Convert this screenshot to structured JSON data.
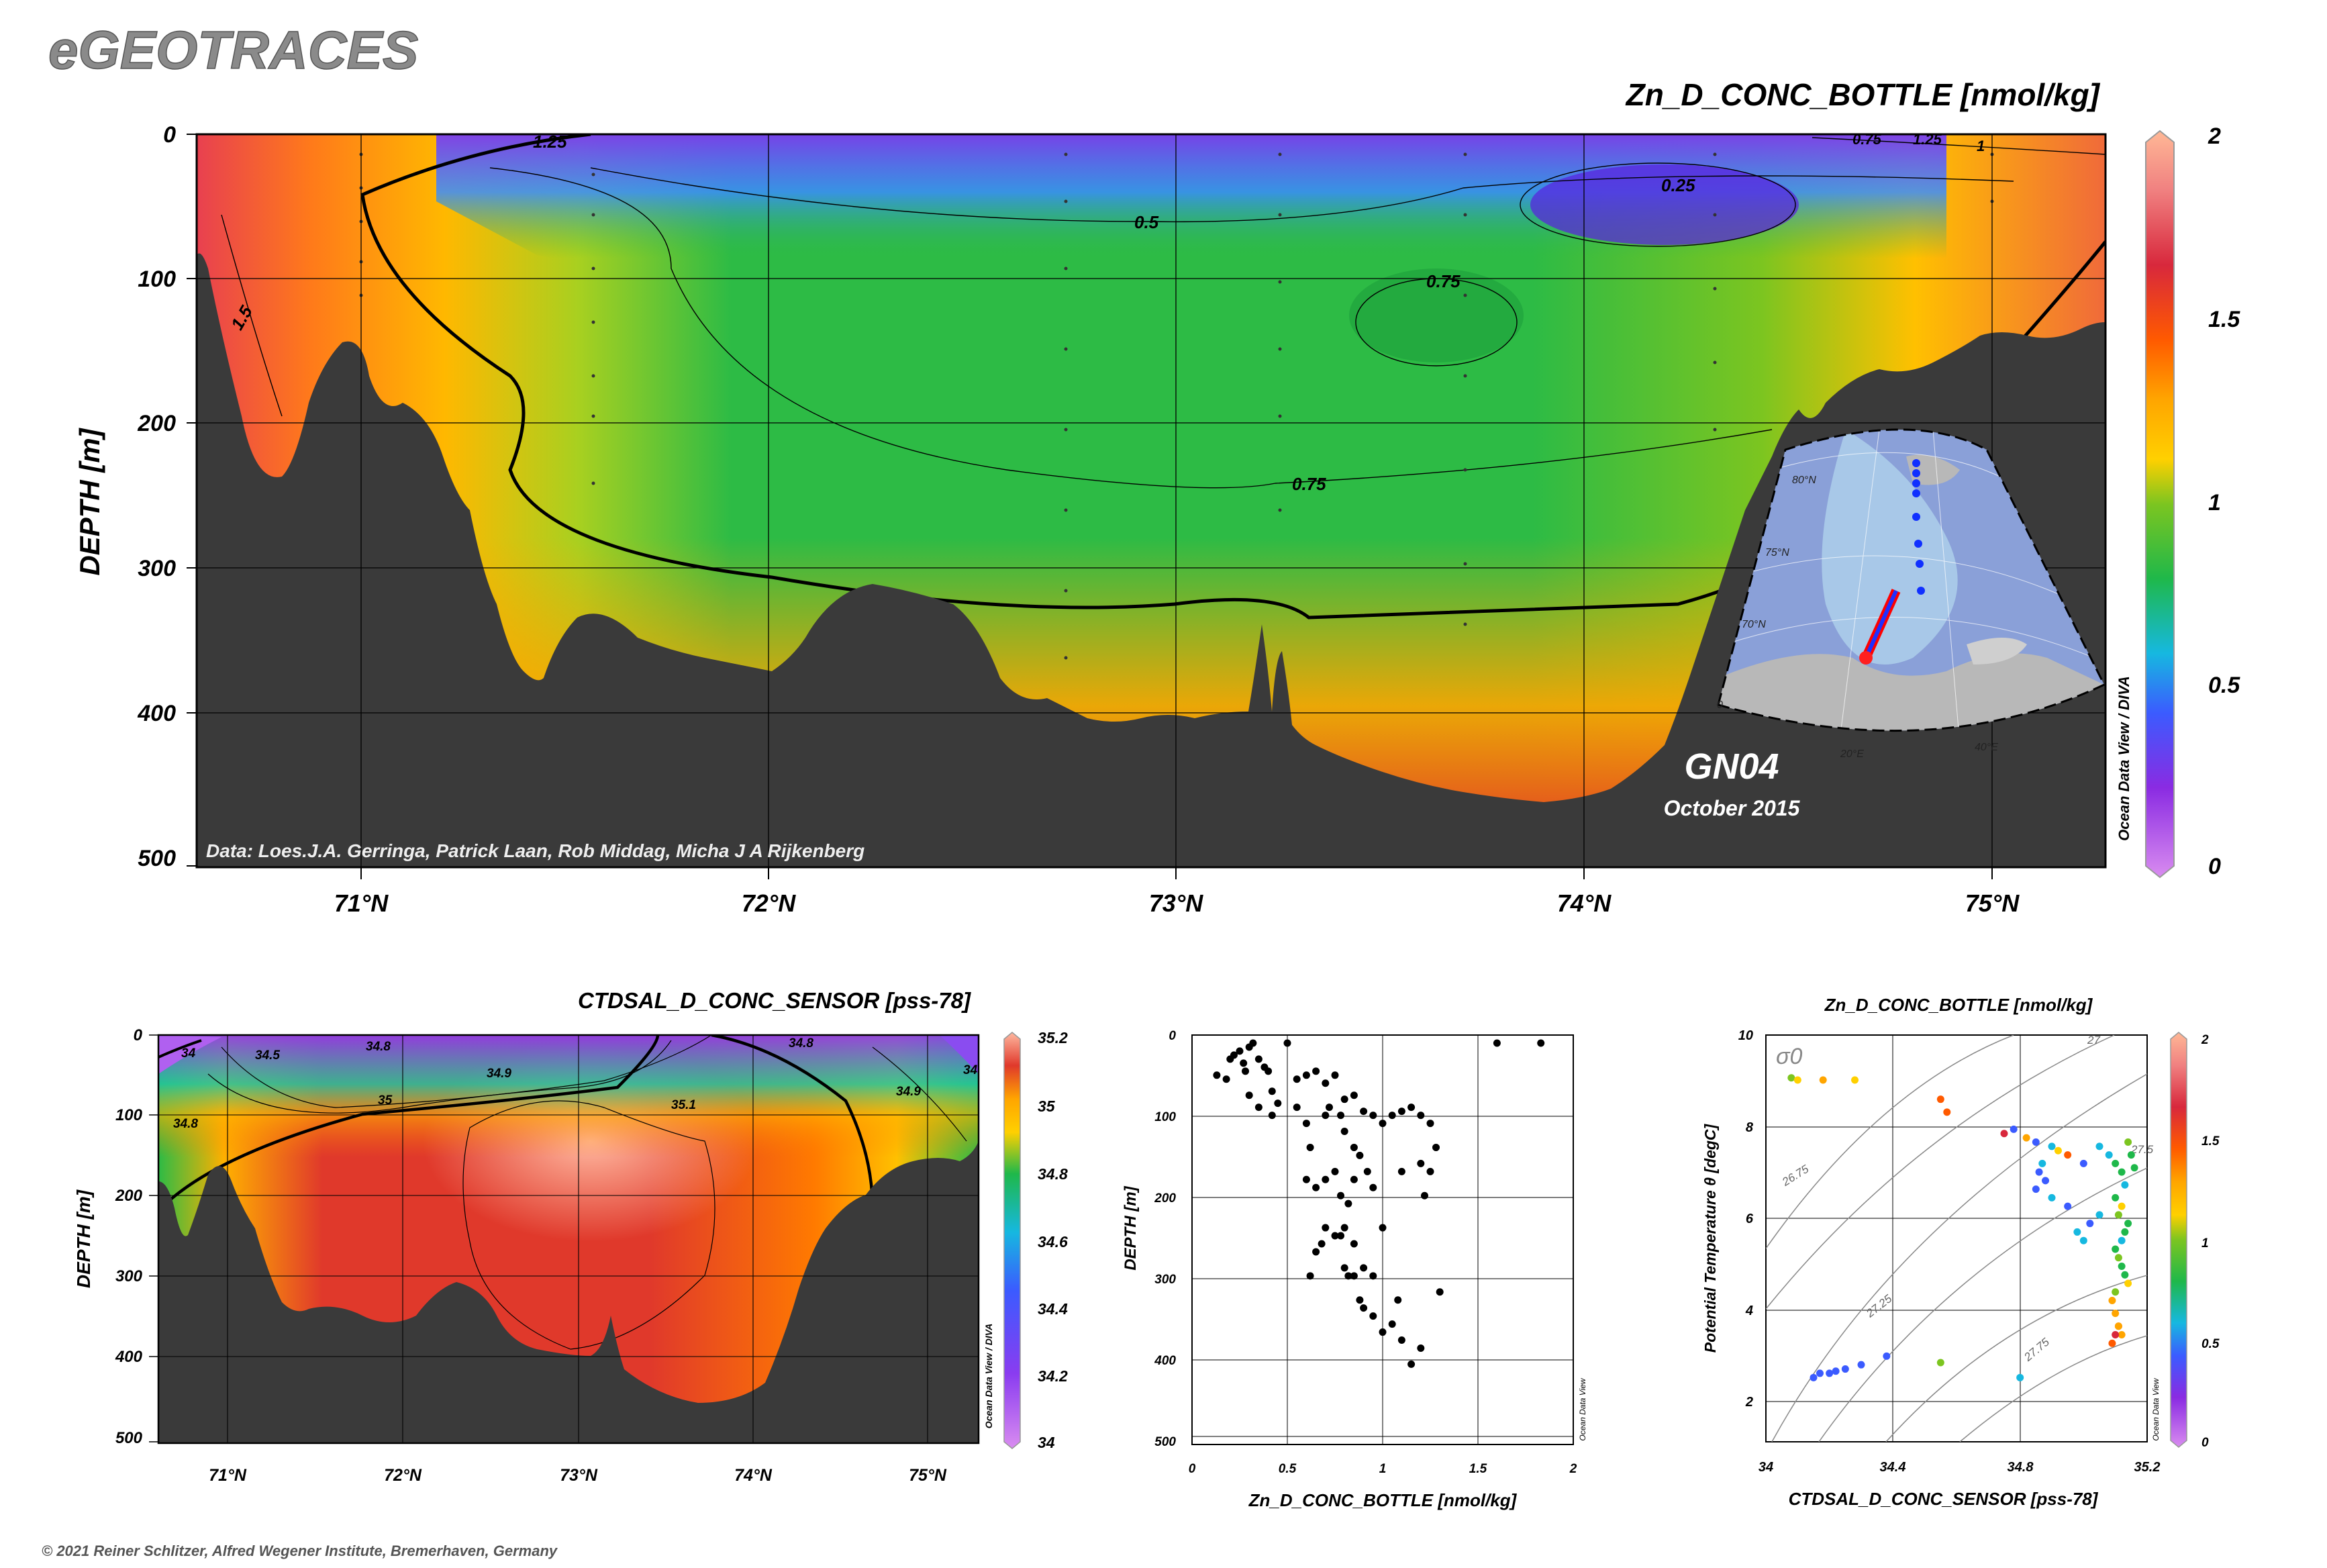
{
  "brand": "eGEOTRACES",
  "copyright": "© 2021 Reiner Schlitzer, Alfred Wegener Institute, Bremerhaven, Germany",
  "colors": {
    "seafloor": "#3a3a3a",
    "frame": "#000000",
    "brand_gray": "#8a8a8a",
    "colormap": [
      "#d98cf0",
      "#8a2be2",
      "#3b5bff",
      "#16b8e0",
      "#1fb84a",
      "#7cc520",
      "#ffd000",
      "#ffa500",
      "#ff5a00",
      "#d8283c",
      "#f08080",
      "#ffb896"
    ]
  },
  "main_section": {
    "title": "Zn_D_CONC_BOTTLE [nmol/kg]",
    "ylabel": "DEPTH [m]",
    "credit": "Data: Loes.J.A. Gerringa, Patrick Laan, Rob Middag, Micha J A Rijkenberg",
    "cruise": "GN04",
    "date": "October 2015",
    "vertical_credit": "Ocean Data View / DIVA",
    "y_ticks": [
      "0",
      "100",
      "200",
      "300",
      "400",
      "500"
    ],
    "x_ticks": [
      "71°N",
      "72°N",
      "73°N",
      "74°N",
      "75°N"
    ],
    "colorbar_ticks": [
      "0",
      "0.5",
      "1",
      "1.5",
      "2"
    ],
    "contour_labels": [
      "1.25",
      "0.5",
      "0.25",
      "0.75",
      "0.75",
      "1.5",
      "0.75",
      "1.25",
      "1"
    ],
    "inset_map": {
      "lat_labels": [
        "80°N",
        "75°N",
        "70°N"
      ],
      "lon_labels": [
        "0",
        "20°E",
        "40°E"
      ]
    }
  },
  "salinity_section": {
    "title": "CTDSAL_D_CONC_SENSOR [pss-78]",
    "ylabel": "DEPTH [m]",
    "vertical_credit": "Ocean Data View / DIVA",
    "y_ticks": [
      "0",
      "100",
      "200",
      "300",
      "400",
      "500"
    ],
    "x_ticks": [
      "71°N",
      "72°N",
      "73°N",
      "74°N",
      "75°N"
    ],
    "colorbar_ticks": [
      "34",
      "34.2",
      "34.4",
      "34.6",
      "34.8",
      "35",
      "35.2"
    ],
    "contour_labels": [
      "34",
      "34.5",
      "34.8",
      "34.9",
      "35",
      "35.1",
      "34.8",
      "34.9",
      "34.8",
      "34"
    ]
  },
  "profile_plot": {
    "xlabel": "Zn_D_CONC_BOTTLE [nmol/kg]",
    "ylabel": "DEPTH [m]",
    "vertical_credit": "Ocean Data View",
    "x_ticks": [
      "0",
      "0.5",
      "1",
      "1.5",
      "2"
    ],
    "y_ticks": [
      "0",
      "100",
      "200",
      "300",
      "400",
      "500"
    ]
  },
  "ts_plot": {
    "title": "Zn_D_CONC_BOTTLE [nmol/kg]",
    "xlabel": "CTDSAL_D_CONC_SENSOR [pss-78]",
    "ylabel": "Potential Temperature θ [degC]",
    "sigma_label": "σ0",
    "vertical_credit": "Ocean Data View",
    "x_ticks": [
      "34",
      "34.4",
      "34.8",
      "35.2"
    ],
    "y_ticks": [
      "2",
      "4",
      "6",
      "8",
      "10"
    ],
    "colorbar_ticks": [
      "0",
      "0.5",
      "1",
      "1.5",
      "2"
    ],
    "isopycnal_labels": [
      "26.75",
      "27.25",
      "27.75",
      "27",
      "27.5"
    ]
  },
  "chart_data": [
    {
      "type": "heatmap",
      "title": "Zn_D_CONC_BOTTLE [nmol/kg]",
      "ylabel": "DEPTH [m]",
      "xlim": [
        70.6,
        75.3
      ],
      "ylim": [
        500,
        0
      ],
      "color_range": [
        0,
        2
      ],
      "bottom_depth_profile": {
        "lat": [
          70.6,
          70.75,
          70.95,
          71.05,
          71.15,
          71.3,
          71.5,
          71.75,
          71.9,
          72.05,
          72.2,
          72.35,
          72.5,
          72.7,
          72.9,
          73.1,
          73.2,
          73.25,
          73.35,
          73.55,
          73.8,
          73.9,
          74.05,
          74.15,
          74.25,
          74.4,
          74.6,
          74.8,
          75.0,
          75.3
        ],
        "depth": [
          90,
          240,
          150,
          180,
          200,
          300,
          380,
          360,
          400,
          380,
          320,
          330,
          390,
          410,
          400,
          385,
          340,
          360,
          430,
          450,
          460,
          462,
          440,
          400,
          350,
          250,
          200,
          180,
          150,
          130
        ]
      },
      "station_lats": [
        71.0,
        71.57,
        72.73,
        73.25,
        73.7,
        74.32,
        75.0
      ]
    },
    {
      "type": "heatmap",
      "title": "CTDSAL_D_CONC_SENSOR [pss-78]",
      "ylabel": "DEPTH [m]",
      "xlim": [
        70.6,
        75.3
      ],
      "ylim": [
        500,
        0
      ],
      "color_range": [
        34,
        35.2
      ]
    },
    {
      "type": "scatter",
      "title": "",
      "xlabel": "Zn_D_CONC_BOTTLE [nmol/kg]",
      "ylabel": "DEPTH [m]",
      "xlim": [
        0,
        2
      ],
      "ylim": [
        510,
        0
      ],
      "series": [
        {
          "x": [
            0.13,
            0.18,
            0.2,
            0.22,
            0.25,
            0.27,
            0.28,
            0.3,
            0.32,
            0.35,
            0.38,
            0.4,
            0.42,
            0.45,
            0.5,
            0.55,
            0.6,
            0.65,
            0.7,
            0.75,
            0.8,
            0.85,
            0.9,
            0.95,
            1.0,
            1.05,
            1.1,
            1.15,
            1.2,
            1.25,
            1.28,
            1.6,
            1.83,
            0.3,
            0.35,
            0.42,
            0.55,
            0.6,
            0.62,
            0.7,
            0.72,
            0.78,
            0.8,
            0.85,
            0.88,
            0.92,
            0.95,
            1.0,
            1.1,
            1.2,
            1.25,
            1.22,
            0.6,
            0.65,
            0.7,
            0.75,
            0.78,
            0.82,
            0.85,
            0.7,
            0.75,
            0.8,
            0.85,
            0.9,
            0.62,
            0.68,
            0.8,
            0.85,
            0.65,
            0.78,
            0.82,
            0.88,
            0.9,
            0.95,
            1.0,
            1.05,
            1.08,
            1.3,
            1.1,
            1.2,
            1.15,
            0.95
          ],
          "y": [
            50,
            55,
            30,
            25,
            20,
            35,
            45,
            15,
            10,
            30,
            40,
            45,
            70,
            85,
            10,
            55,
            50,
            45,
            60,
            50,
            80,
            75,
            95,
            100,
            110,
            100,
            95,
            90,
            100,
            110,
            140,
            10,
            10,
            75,
            90,
            100,
            90,
            110,
            140,
            100,
            90,
            100,
            120,
            140,
            150,
            170,
            190,
            240,
            170,
            160,
            170,
            200,
            180,
            190,
            180,
            170,
            200,
            210,
            180,
            240,
            250,
            240,
            260,
            290,
            300,
            260,
            290,
            300,
            270,
            250,
            300,
            330,
            340,
            350,
            370,
            360,
            330,
            320,
            380,
            390,
            410,
            300
          ]
        }
      ]
    },
    {
      "type": "scatter",
      "title": "Zn_D_CONC_BOTTLE [nmol/kg]",
      "xlabel": "CTDSAL_D_CONC_SENSOR [pss-78]",
      "ylabel": "Potential Temperature θ [degC]",
      "xlim": [
        34,
        35.2
      ],
      "ylim": [
        0.5,
        10
      ],
      "color_range": [
        0,
        2
      ],
      "series": [
        {
          "x": [
            34.08,
            34.1,
            34.18,
            34.28,
            34.55,
            34.57,
            34.75,
            34.78,
            34.82,
            34.85,
            34.9,
            34.92,
            34.95,
            35.0,
            35.05,
            35.08,
            35.1,
            35.12,
            35.14,
            35.15,
            35.16,
            35.13,
            35.1,
            35.12,
            35.11,
            35.14,
            35.13,
            35.12,
            35.1,
            35.11,
            35.12,
            35.13,
            35.14,
            35.1,
            35.09,
            35.1,
            35.11,
            35.12,
            35.05,
            35.02,
            34.98,
            35.0,
            34.95,
            34.9,
            34.85,
            34.88,
            34.86,
            34.87,
            34.15,
            34.17,
            34.2,
            34.22,
            34.25,
            34.3,
            34.38,
            34.55,
            34.8,
            35.09,
            35.1,
            35.11
          ],
          "y": [
            9.0,
            8.95,
            8.95,
            8.95,
            8.5,
            8.2,
            7.7,
            7.8,
            7.6,
            7.5,
            7.4,
            7.3,
            7.2,
            7.0,
            7.4,
            7.2,
            7.0,
            6.8,
            7.5,
            7.2,
            6.9,
            6.5,
            6.2,
            6.0,
            5.8,
            5.6,
            5.4,
            5.2,
            5.0,
            4.8,
            4.6,
            4.4,
            4.2,
            4.0,
            3.8,
            3.5,
            3.2,
            3.0,
            5.8,
            5.6,
            5.4,
            5.2,
            6.0,
            6.2,
            6.4,
            6.6,
            6.8,
            7.0,
            2.0,
            2.1,
            2.1,
            2.15,
            2.2,
            2.3,
            2.5,
            2.35,
            2.0,
            2.8,
            3.0,
            3.2
          ],
          "z": [
            0.9,
            1.0,
            1.3,
            1.0,
            1.4,
            1.5,
            1.6,
            0.4,
            1.3,
            0.3,
            0.5,
            1.0,
            1.5,
            0.4,
            0.5,
            0.6,
            0.7,
            0.8,
            0.9,
            0.8,
            0.7,
            0.6,
            0.8,
            1.0,
            0.9,
            0.8,
            0.7,
            0.6,
            0.8,
            0.9,
            0.8,
            0.7,
            1.0,
            0.9,
            1.2,
            1.3,
            1.4,
            1.3,
            0.5,
            0.4,
            0.5,
            0.6,
            0.3,
            0.5,
            0.4,
            0.3,
            0.4,
            0.6,
            0.4,
            0.4,
            0.3,
            0.3,
            0.3,
            0.4,
            0.4,
            0.9,
            0.5,
            1.5,
            1.6,
            1.3
          ]
        }
      ]
    }
  ]
}
